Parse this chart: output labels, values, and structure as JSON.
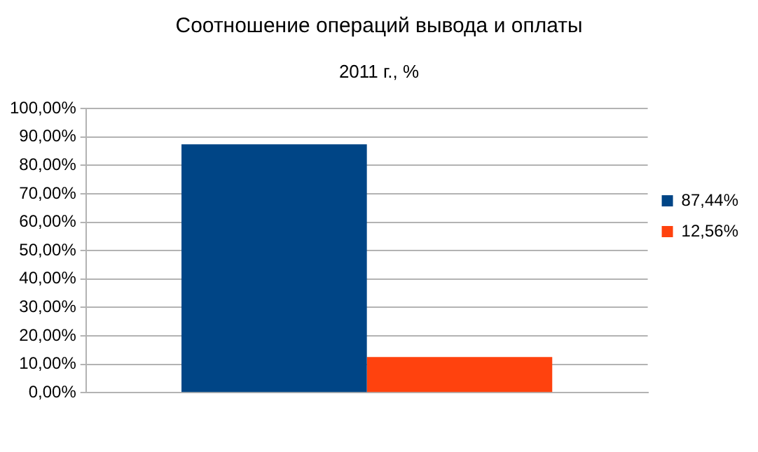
{
  "chart_data": {
    "type": "bar",
    "title": "Соотношение операций вывода и оплаты",
    "subtitle": "2011 г., %",
    "categories": [
      null
    ],
    "series": [
      {
        "name": "87,44%",
        "color": "#004586",
        "values": [
          87.44
        ]
      },
      {
        "name": "12,56%",
        "color": "#ff420e",
        "values": [
          12.56
        ]
      }
    ],
    "ylim": [
      0,
      100
    ],
    "yticks": [
      {
        "value": 0,
        "label": "0,00%"
      },
      {
        "value": 10,
        "label": "10,00%"
      },
      {
        "value": 20,
        "label": "20,00%"
      },
      {
        "value": 30,
        "label": "30,00%"
      },
      {
        "value": 40,
        "label": "40,00%"
      },
      {
        "value": 50,
        "label": "50,00%"
      },
      {
        "value": 60,
        "label": "60,00%"
      },
      {
        "value": 70,
        "label": "70,00%"
      },
      {
        "value": 80,
        "label": "80,00%"
      },
      {
        "value": 90,
        "label": "90,00%"
      },
      {
        "value": 100,
        "label": "100,00%"
      }
    ],
    "grid": "y",
    "legend": "right"
  }
}
